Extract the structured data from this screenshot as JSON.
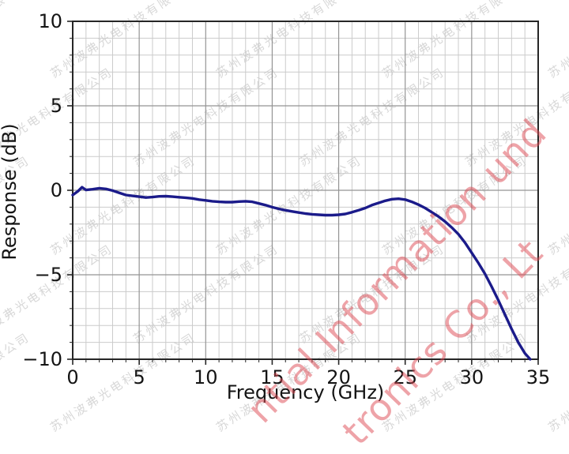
{
  "chart_data": {
    "type": "line",
    "title": "",
    "xlabel": "Frequency (GHz)",
    "ylabel": "Response (dB)",
    "xlim": [
      0,
      35
    ],
    "ylim": [
      -10,
      10
    ],
    "xtick_values": [
      0,
      5,
      10,
      15,
      20,
      25,
      30,
      35
    ],
    "xtick_labels": [
      "0",
      "5",
      "10",
      "15",
      "20",
      "25",
      "30",
      "35"
    ],
    "ytick_values": [
      10,
      5,
      0,
      -5,
      -10
    ],
    "ytick_labels": [
      "10",
      "5",
      "0",
      "−5",
      "−10"
    ],
    "minor_x_step": 1,
    "minor_y_step": 1,
    "grid": "major+minor",
    "legend": "none",
    "series": [
      {
        "name": "response",
        "color": "#1b1b8a",
        "x": [
          0,
          0.4,
          0.7,
          1.0,
          1.5,
          2.0,
          2.5,
          3.0,
          3.5,
          4.0,
          4.5,
          5.0,
          5.5,
          6.0,
          6.5,
          7.0,
          7.5,
          8.0,
          8.5,
          9.0,
          9.5,
          10.0,
          10.5,
          11.0,
          11.5,
          12.0,
          12.5,
          13.0,
          13.5,
          14.0,
          14.5,
          15.0,
          15.5,
          16.0,
          16.5,
          17.0,
          17.5,
          18.0,
          18.5,
          19.0,
          19.5,
          20.0,
          20.5,
          21.0,
          21.5,
          22.0,
          22.5,
          23.0,
          23.5,
          24.0,
          24.5,
          25.0,
          25.5,
          26.0,
          26.5,
          27.0,
          27.5,
          28.0,
          28.5,
          29.0,
          29.5,
          30.0,
          30.5,
          31.0,
          31.5,
          32.0,
          32.5,
          33.0,
          33.5,
          34.0,
          34.4
        ],
        "y": [
          -0.28,
          -0.05,
          0.18,
          0.02,
          0.06,
          0.12,
          0.08,
          -0.02,
          -0.15,
          -0.28,
          -0.33,
          -0.38,
          -0.43,
          -0.4,
          -0.36,
          -0.35,
          -0.38,
          -0.41,
          -0.44,
          -0.48,
          -0.55,
          -0.6,
          -0.65,
          -0.68,
          -0.7,
          -0.7,
          -0.67,
          -0.65,
          -0.68,
          -0.78,
          -0.88,
          -1.0,
          -1.1,
          -1.18,
          -1.25,
          -1.32,
          -1.38,
          -1.42,
          -1.45,
          -1.47,
          -1.47,
          -1.45,
          -1.4,
          -1.3,
          -1.18,
          -1.05,
          -0.88,
          -0.75,
          -0.62,
          -0.53,
          -0.5,
          -0.55,
          -0.68,
          -0.85,
          -1.05,
          -1.3,
          -1.55,
          -1.85,
          -2.2,
          -2.6,
          -3.1,
          -3.7,
          -4.3,
          -4.95,
          -5.7,
          -6.5,
          -7.35,
          -8.2,
          -9.0,
          -9.65,
          -10.0
        ]
      }
    ],
    "colors": {
      "major_grid": "#949494",
      "minor_grid": "#cbcbcb",
      "spine": "#262626",
      "tick": "#262626",
      "tick_text": "#141414"
    }
  },
  "watermarks": {
    "red_lines": [
      {
        "text": "ntial Information und"
      },
      {
        "text": "tronics Co., Lt"
      }
    ],
    "gray_text": "苏州波弗光电科技有限公司"
  }
}
